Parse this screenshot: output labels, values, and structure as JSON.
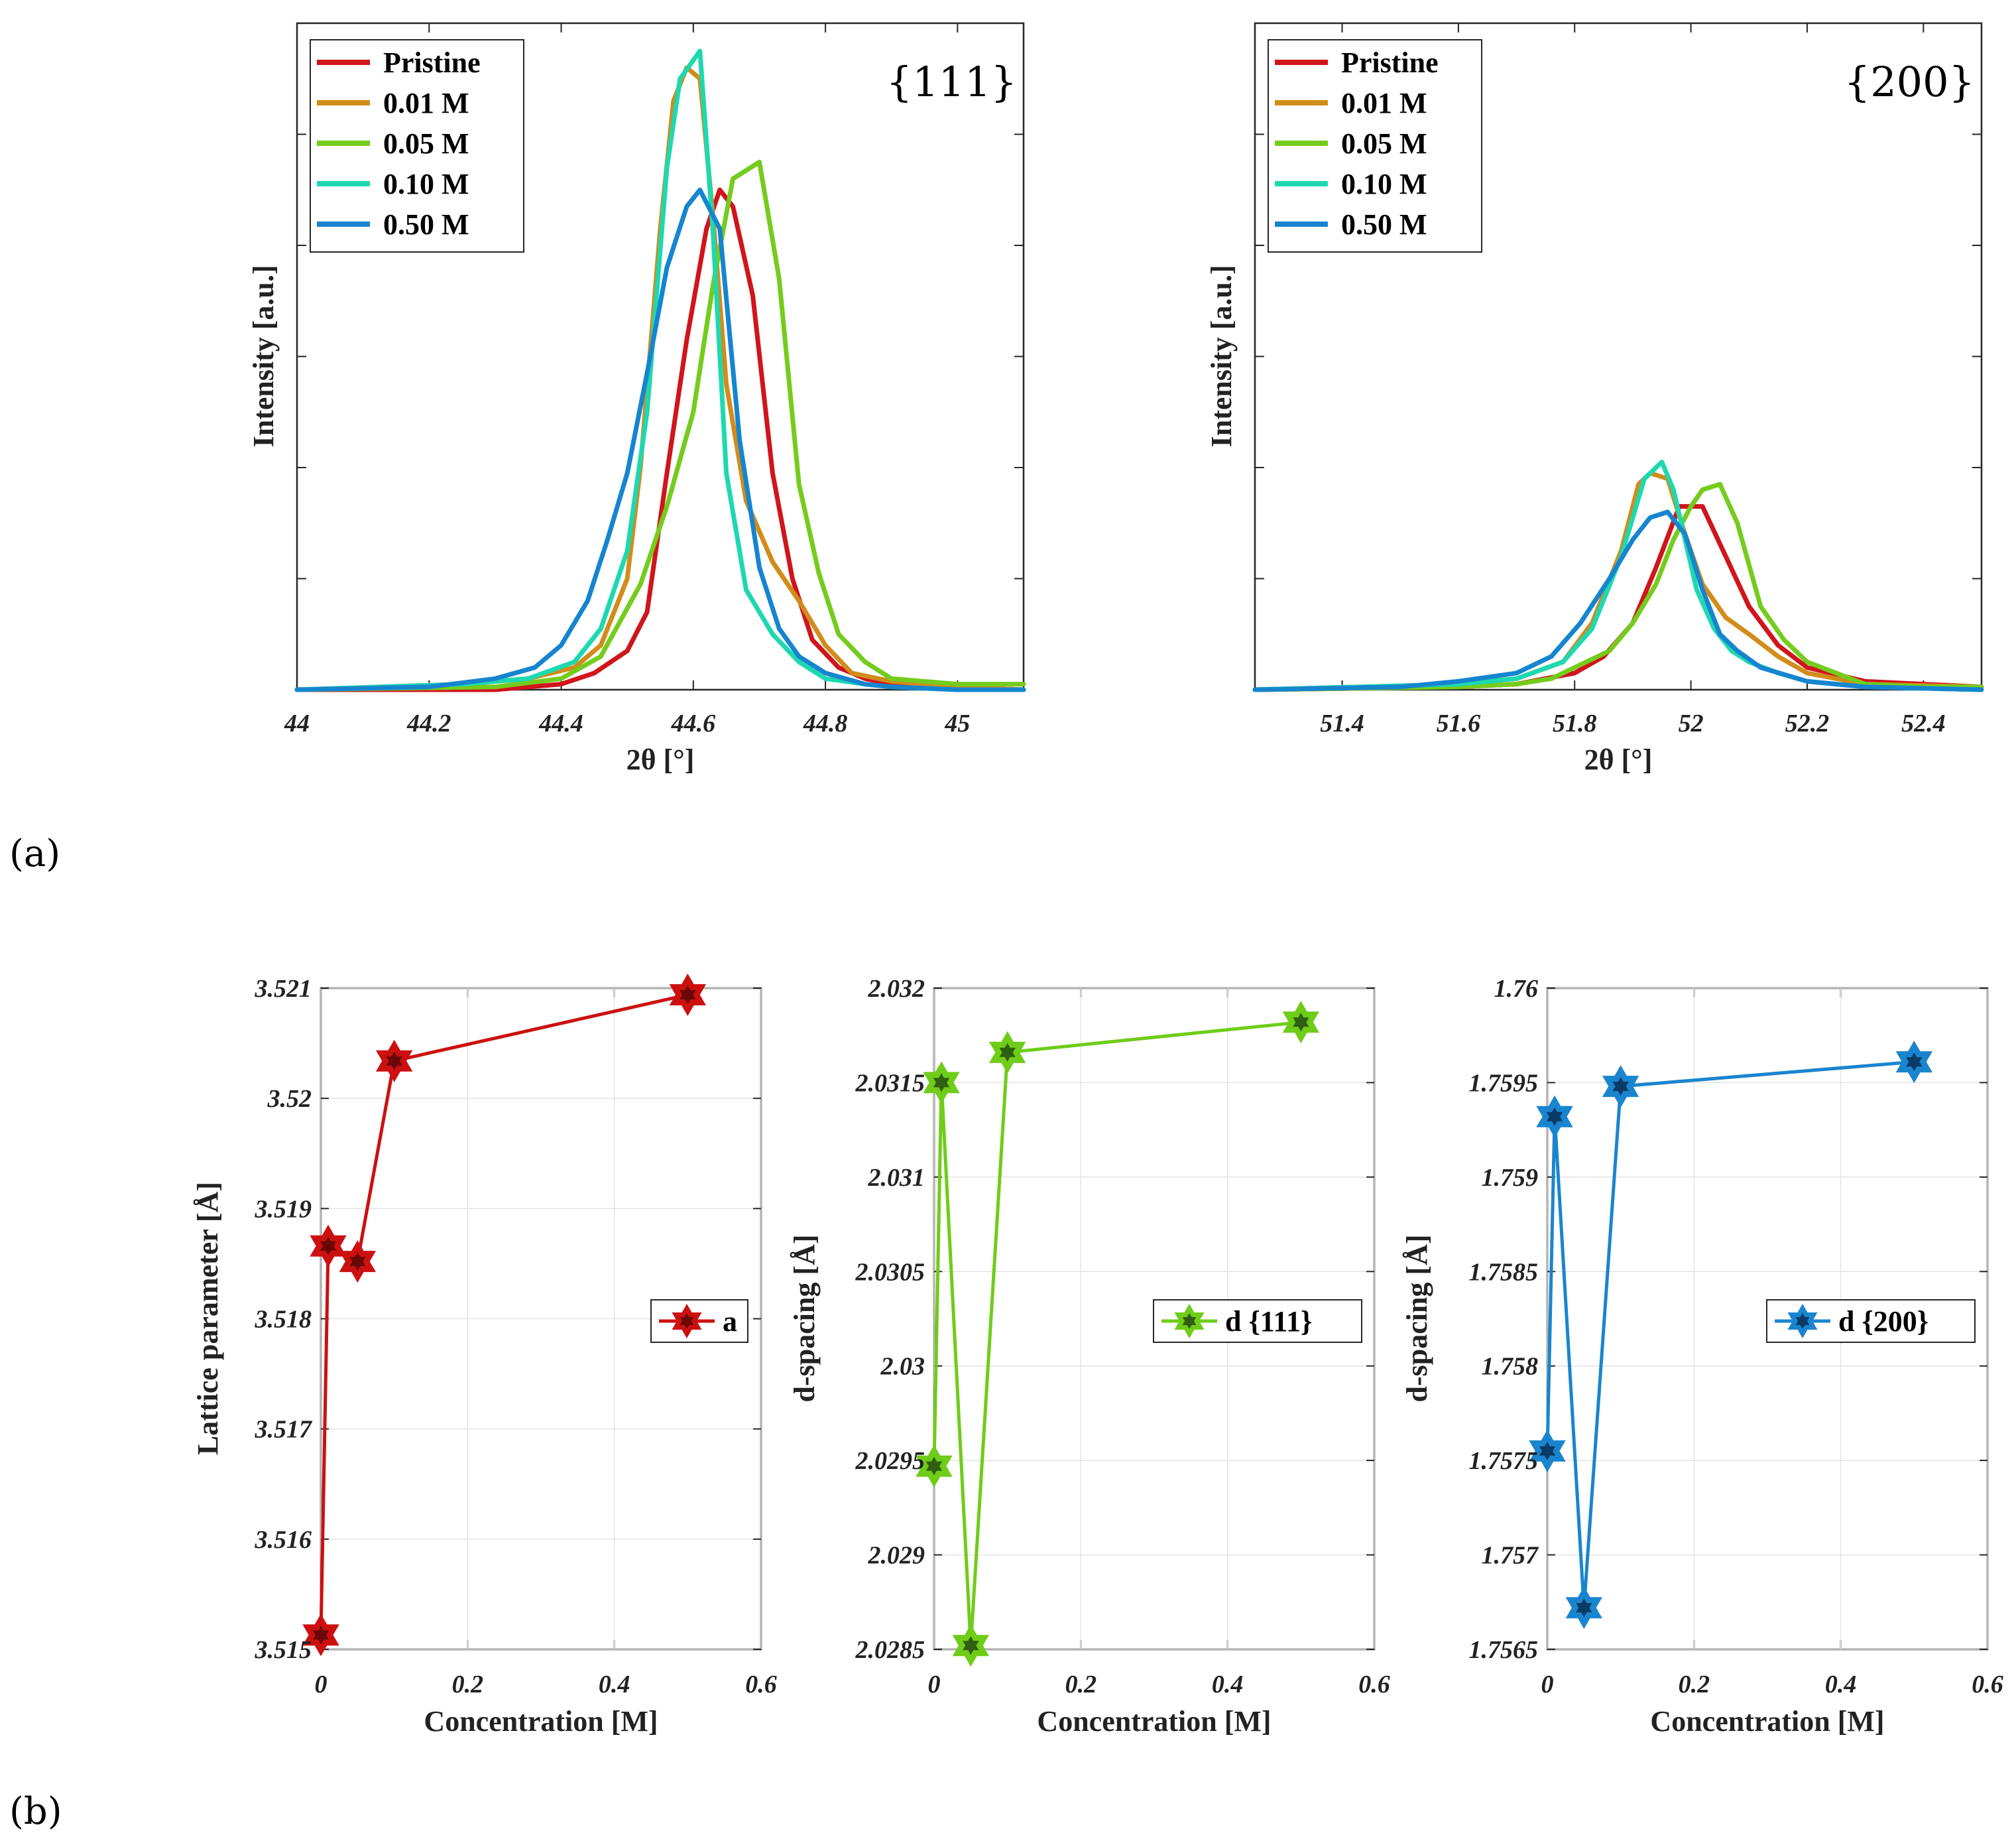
{
  "panel_labels": {
    "a": "(a)",
    "b": "(b)"
  },
  "colors": {
    "pristine": "#d0151b",
    "c001": "#d18c1a",
    "c005": "#74cc1d",
    "c010": "#1ed8b0",
    "c050": "#1685d0",
    "lattice": "#cc1010",
    "d111": "#6fcc18",
    "d200": "#1a85cf",
    "lattice_dark": "#6a0808",
    "d111_dark": "#2f5f10",
    "d200_dark": "#0a3a66"
  },
  "chart_data": [
    {
      "type": "line",
      "id": "xrd111",
      "title": "{111}",
      "xlabel": "2θ [°]",
      "ylabel": "Intensity [a.u.]",
      "xlim": [
        44,
        45.1
      ],
      "ylim": [
        0,
        1.2
      ],
      "xticks": [
        44,
        44.2,
        44.4,
        44.6,
        44.8,
        45
      ],
      "xtick_labels": [
        "44",
        "44.2",
        "44.4",
        "44.6",
        "44.8",
        "45"
      ],
      "ygrid": [
        0.2,
        0.4,
        0.6,
        0.8,
        1.0
      ],
      "legend_position": "top-left",
      "series": [
        {
          "name": "Pristine",
          "color_key": "pristine",
          "x": [
            44,
            44.3,
            44.4,
            44.45,
            44.5,
            44.53,
            44.56,
            44.59,
            44.62,
            44.64,
            44.66,
            44.69,
            44.72,
            44.75,
            44.78,
            44.82,
            44.86,
            44.9,
            45,
            45.1
          ],
          "y": [
            0,
            0,
            0.01,
            0.03,
            0.07,
            0.14,
            0.39,
            0.63,
            0.83,
            0.9,
            0.87,
            0.71,
            0.39,
            0.2,
            0.09,
            0.04,
            0.02,
            0.01,
            0.005,
            0
          ]
        },
        {
          "name": "0.01 M",
          "color_key": "c001",
          "x": [
            44,
            44.25,
            44.35,
            44.42,
            44.46,
            44.5,
            44.52,
            44.55,
            44.57,
            44.59,
            44.61,
            44.63,
            44.65,
            44.68,
            44.72,
            44.76,
            44.8,
            44.84,
            44.9,
            45,
            45.1
          ],
          "y": [
            0,
            0.01,
            0.02,
            0.04,
            0.08,
            0.2,
            0.4,
            0.83,
            1.06,
            1.12,
            1.1,
            0.85,
            0.55,
            0.34,
            0.23,
            0.16,
            0.08,
            0.03,
            0.015,
            0.005,
            0
          ]
        },
        {
          "name": "0.05 M",
          "color_key": "c005",
          "x": [
            44,
            44.3,
            44.4,
            44.46,
            44.52,
            44.56,
            44.6,
            44.63,
            44.66,
            44.7,
            44.73,
            44.76,
            44.79,
            44.82,
            44.86,
            44.9,
            45,
            45.1
          ],
          "y": [
            0,
            0.005,
            0.02,
            0.06,
            0.19,
            0.33,
            0.5,
            0.73,
            0.92,
            0.95,
            0.74,
            0.37,
            0.21,
            0.1,
            0.05,
            0.02,
            0.01,
            0.01
          ]
        },
        {
          "name": "0.10 M",
          "color_key": "c010",
          "x": [
            44,
            44.25,
            44.35,
            44.42,
            44.46,
            44.5,
            44.53,
            44.56,
            44.58,
            44.61,
            44.63,
            44.65,
            44.68,
            44.72,
            44.76,
            44.8,
            44.86,
            44.9,
            45,
            45.1
          ],
          "y": [
            0,
            0.01,
            0.02,
            0.05,
            0.11,
            0.25,
            0.5,
            0.94,
            1.1,
            1.15,
            0.82,
            0.39,
            0.18,
            0.1,
            0.05,
            0.02,
            0.01,
            0.005,
            0,
            0
          ]
        },
        {
          "name": "0.50 M",
          "color_key": "c050",
          "x": [
            44,
            44.2,
            44.3,
            44.36,
            44.4,
            44.44,
            44.47,
            44.5,
            44.53,
            44.56,
            44.59,
            44.61,
            44.64,
            44.67,
            44.7,
            44.73,
            44.76,
            44.8,
            44.86,
            44.9,
            45,
            45.1
          ],
          "y": [
            0,
            0.005,
            0.02,
            0.04,
            0.08,
            0.16,
            0.27,
            0.39,
            0.57,
            0.76,
            0.87,
            0.9,
            0.83,
            0.45,
            0.22,
            0.11,
            0.06,
            0.03,
            0.01,
            0.005,
            0,
            0
          ]
        }
      ]
    },
    {
      "type": "line",
      "id": "xrd200",
      "title": "{200}",
      "xlabel": "2θ [°]",
      "ylabel": "Intensity [a.u.]",
      "xlim": [
        51.25,
        52.5
      ],
      "ylim": [
        0,
        1.2
      ],
      "xticks": [
        51.4,
        51.6,
        51.8,
        52,
        52.2,
        52.4
      ],
      "xtick_labels": [
        "51.4",
        "51.6",
        "51.8",
        "52",
        "52.2",
        "52.4"
      ],
      "ygrid": [
        0.2,
        0.4,
        0.6,
        0.8,
        1.0
      ],
      "legend_position": "top-left",
      "series": [
        {
          "name": "Pristine",
          "color_key": "pristine",
          "x": [
            51.25,
            51.6,
            51.7,
            51.8,
            51.85,
            51.9,
            51.94,
            51.98,
            52.02,
            52.06,
            52.1,
            52.15,
            52.2,
            52.3,
            52.5
          ],
          "y": [
            0,
            0.005,
            0.01,
            0.03,
            0.06,
            0.12,
            0.22,
            0.33,
            0.33,
            0.24,
            0.15,
            0.08,
            0.04,
            0.015,
            0.005
          ]
        },
        {
          "name": "0.01 M",
          "color_key": "c001",
          "x": [
            51.25,
            51.6,
            51.7,
            51.78,
            51.83,
            51.88,
            51.91,
            51.93,
            51.96,
            51.99,
            52.02,
            52.06,
            52.1,
            52.15,
            52.2,
            52.3,
            52.5
          ],
          "y": [
            0,
            0.01,
            0.02,
            0.05,
            0.12,
            0.25,
            0.37,
            0.39,
            0.38,
            0.28,
            0.19,
            0.13,
            0.1,
            0.06,
            0.03,
            0.01,
            0.005
          ]
        },
        {
          "name": "0.05 M",
          "color_key": "c005",
          "x": [
            51.25,
            51.6,
            51.7,
            51.76,
            51.8,
            51.86,
            51.9,
            51.94,
            51.97,
            52,
            52.02,
            52.05,
            52.08,
            52.12,
            52.16,
            52.2,
            52.25,
            52.3,
            52.4,
            52.5
          ],
          "y": [
            0,
            0.005,
            0.01,
            0.02,
            0.04,
            0.07,
            0.12,
            0.19,
            0.27,
            0.33,
            0.36,
            0.37,
            0.3,
            0.15,
            0.09,
            0.05,
            0.03,
            0.01,
            0.005,
            0.005
          ]
        },
        {
          "name": "0.10 M",
          "color_key": "c010",
          "x": [
            51.25,
            51.6,
            51.7,
            51.78,
            51.83,
            51.88,
            51.92,
            51.95,
            51.97,
            51.99,
            52.01,
            52.04,
            52.07,
            52.1,
            52.15,
            52.2,
            52.3,
            52.5
          ],
          "y": [
            0,
            0.01,
            0.02,
            0.05,
            0.11,
            0.24,
            0.38,
            0.41,
            0.36,
            0.27,
            0.18,
            0.11,
            0.07,
            0.05,
            0.03,
            0.015,
            0.005,
            0
          ]
        },
        {
          "name": "0.50 M",
          "color_key": "c050",
          "x": [
            51.25,
            51.5,
            51.6,
            51.7,
            51.76,
            51.81,
            51.86,
            51.9,
            51.93,
            51.96,
            51.99,
            52.02,
            52.05,
            52.08,
            52.12,
            52.2,
            52.3,
            52.5
          ],
          "y": [
            0,
            0.005,
            0.015,
            0.03,
            0.06,
            0.12,
            0.2,
            0.27,
            0.31,
            0.32,
            0.28,
            0.18,
            0.1,
            0.07,
            0.04,
            0.015,
            0.005,
            0
          ]
        }
      ]
    },
    {
      "type": "line",
      "id": "lattice",
      "xlabel": "Concentration [M]",
      "ylabel": "Lattice parameter [Å]",
      "xlim": [
        0,
        0.6
      ],
      "ylim": [
        3.515,
        3.521
      ],
      "xticks": [
        0,
        0.2,
        0.4,
        0.6
      ],
      "xtick_labels": [
        "0",
        "0.2",
        "0.4",
        "0.6"
      ],
      "yticks": [
        3.515,
        3.516,
        3.517,
        3.518,
        3.519,
        3.52,
        3.521
      ],
      "ytick_labels": [
        "3.515",
        "3.516",
        "3.517",
        "3.518",
        "3.519",
        "3.52",
        "3.521"
      ],
      "legend_position": "right",
      "series": [
        {
          "name": "a",
          "color_key": "lattice",
          "marker": "hexagram",
          "x": [
            0,
            0.01,
            0.05,
            0.1,
            0.5
          ],
          "y": [
            3.51513,
            3.51866,
            3.51852,
            3.52034,
            3.52094
          ]
        }
      ]
    },
    {
      "type": "line",
      "id": "d111",
      "xlabel": "Concentration [M]",
      "ylabel": "d-spacing [Å]",
      "xlim": [
        0,
        0.6
      ],
      "ylim": [
        2.0285,
        2.032
      ],
      "xticks": [
        0,
        0.2,
        0.4,
        0.6
      ],
      "xtick_labels": [
        "0",
        "0.2",
        "0.4",
        "0.6"
      ],
      "yticks": [
        2.0285,
        2.029,
        2.0295,
        2.03,
        2.0305,
        2.031,
        2.0315,
        2.032
      ],
      "ytick_labels": [
        "2.0285",
        "2.029",
        "2.0295",
        "2.03",
        "2.0305",
        "2.031",
        "2.0315",
        "2.032"
      ],
      "legend_position": "right",
      "series": [
        {
          "name": "d {111}",
          "color_key": "d111",
          "marker": "hexagram",
          "x": [
            0,
            0.01,
            0.05,
            0.1,
            0.5
          ],
          "y": [
            2.02947,
            2.0315,
            2.02852,
            2.03166,
            2.03182
          ]
        }
      ]
    },
    {
      "type": "line",
      "id": "d200",
      "xlabel": "Concentration [M]",
      "ylabel": "d-spacing [Å]",
      "xlim": [
        0,
        0.6
      ],
      "ylim": [
        1.7565,
        1.76
      ],
      "xticks": [
        0,
        0.2,
        0.4,
        0.6
      ],
      "xtick_labels": [
        "0",
        "0.2",
        "0.4",
        "0.6"
      ],
      "yticks": [
        1.7565,
        1.757,
        1.7575,
        1.758,
        1.7585,
        1.759,
        1.7595,
        1.76
      ],
      "ytick_labels": [
        "1.7565",
        "1.757",
        "1.7575",
        "1.758",
        "1.7585",
        "1.759",
        "1.7595",
        "1.76"
      ],
      "legend_position": "right",
      "series": [
        {
          "name": "d {200}",
          "color_key": "d200",
          "marker": "hexagram",
          "x": [
            0,
            0.01,
            0.05,
            0.1,
            0.5
          ],
          "y": [
            1.75755,
            1.75932,
            1.75672,
            1.75948,
            1.75961
          ]
        }
      ]
    }
  ]
}
